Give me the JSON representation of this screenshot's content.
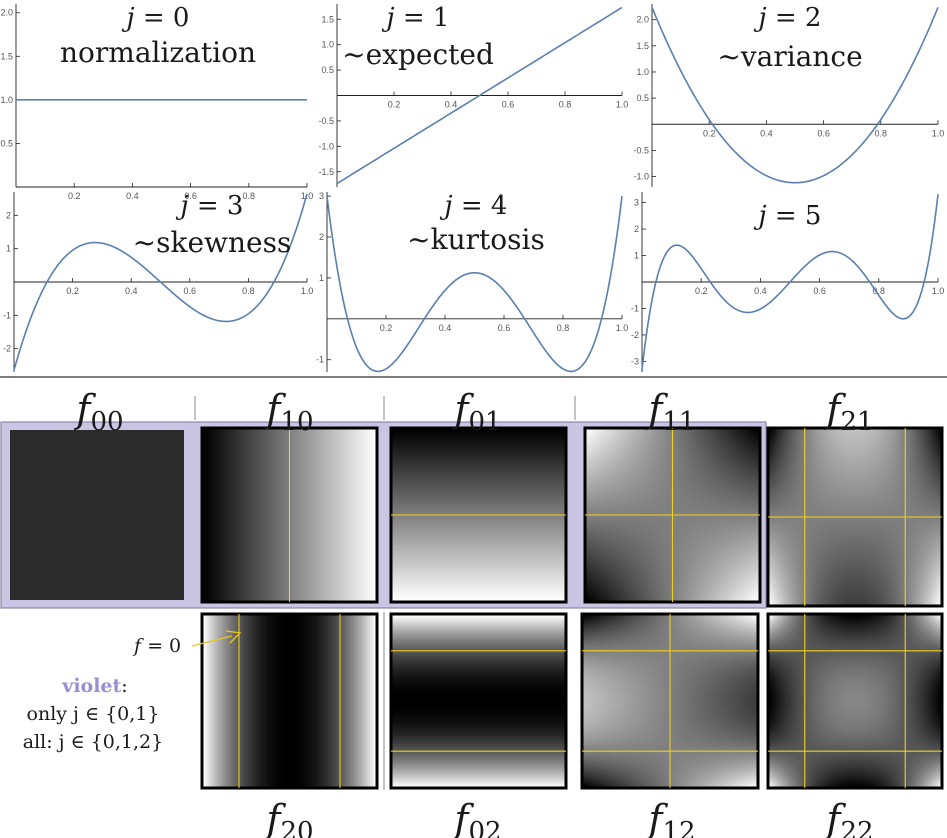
{
  "plots": [
    {
      "label": "j = 0",
      "desc": "normalization",
      "j": 0,
      "yticks": [
        "2.0",
        "1.5",
        "1.0",
        "0.5"
      ],
      "yvals": [
        2.0,
        1.5,
        1.0,
        0.5
      ],
      "ylim": [
        0,
        2.1
      ],
      "xticks": [
        "0.2",
        "0.4",
        "0.6",
        "0.8",
        "1.0"
      ]
    },
    {
      "label": "j = 1",
      "desc": "~expected",
      "j": 1,
      "yticks": [
        "1.5",
        "1.0",
        "0.5",
        "-0.5",
        "-1.0",
        "-1.5"
      ],
      "yvals": [
        1.5,
        1.0,
        0.5,
        -0.5,
        -1.0,
        -1.5
      ],
      "ylim": [
        -1.8,
        1.8
      ],
      "xticks": [
        "0.2",
        "0.4",
        "0.6",
        "0.8",
        "1.0"
      ]
    },
    {
      "label": "j = 2",
      "desc": "~variance",
      "j": 2,
      "yticks": [
        "2.0",
        "1.5",
        "1.0",
        "0.5",
        "-0.5",
        "-1.0"
      ],
      "yvals": [
        2.0,
        1.5,
        1.0,
        0.5,
        -0.5,
        -1.0
      ],
      "ylim": [
        -1.2,
        2.3
      ],
      "xticks": [
        "0.2",
        "0.4",
        "0.6",
        "0.8",
        "1.0"
      ]
    },
    {
      "label": "j = 3",
      "desc": "~skewness",
      "j": 3,
      "yticks": [
        "2",
        "1",
        "-1",
        "-2"
      ],
      "yvals": [
        2,
        1,
        -1,
        -2
      ],
      "ylim": [
        -2.7,
        2.7
      ],
      "xticks": [
        "0.2",
        "0.4",
        "0.6",
        "0.8",
        "1.0"
      ]
    },
    {
      "label": "j = 4",
      "desc": "~kurtosis",
      "j": 4,
      "yticks": [
        "3",
        "2",
        "1",
        "-1"
      ],
      "yvals": [
        3,
        2,
        1,
        -1
      ],
      "ylim": [
        -1.3,
        3.1
      ],
      "xticks": [
        "0.2",
        "0.4",
        "0.6",
        "0.8",
        "1.0"
      ]
    },
    {
      "label": "j = 5",
      "desc": "",
      "j": 5,
      "yticks": [
        "3",
        "2",
        "1",
        "-1",
        "-2",
        "-3"
      ],
      "yvals": [
        3,
        2,
        1,
        -1,
        -2,
        -3
      ],
      "ylim": [
        -3.4,
        3.4
      ],
      "xticks": [
        "0.2",
        "0.4",
        "0.6",
        "0.8",
        "1.0"
      ]
    }
  ],
  "images_top": [
    {
      "base": "f",
      "sub": "00",
      "j": 0,
      "k": 0,
      "violet": true
    },
    {
      "base": "f",
      "sub": "10",
      "j": 1,
      "k": 0,
      "violet": true
    },
    {
      "base": "f",
      "sub": "01",
      "j": 0,
      "k": 1,
      "violet": true
    },
    {
      "base": "f",
      "sub": "11",
      "j": 1,
      "k": 1,
      "violet": true
    },
    {
      "base": "f",
      "sub": "21",
      "j": 2,
      "k": 1,
      "violet": false
    }
  ],
  "images_bottom": [
    {
      "base": "f",
      "sub": "20",
      "j": 2,
      "k": 0
    },
    {
      "base": "f",
      "sub": "02",
      "j": 0,
      "k": 2
    },
    {
      "base": "f",
      "sub": "12",
      "j": 1,
      "k": 2
    },
    {
      "base": "f",
      "sub": "22",
      "j": 2,
      "k": 2
    }
  ],
  "legend": {
    "zero_label_f": "f",
    "zero_label_rest": " = 0",
    "violet_word": "violet",
    "violet_colon": ":",
    "line1": "only j ∈ {0,1}",
    "line2": "all: j ∈ {0,1,2}"
  },
  "colors": {
    "curve": "#5a7fb0",
    "violet_frame": "#c9c5e2",
    "zero_line": "#f0d020",
    "dark_fill": "#2b2b2b"
  }
}
